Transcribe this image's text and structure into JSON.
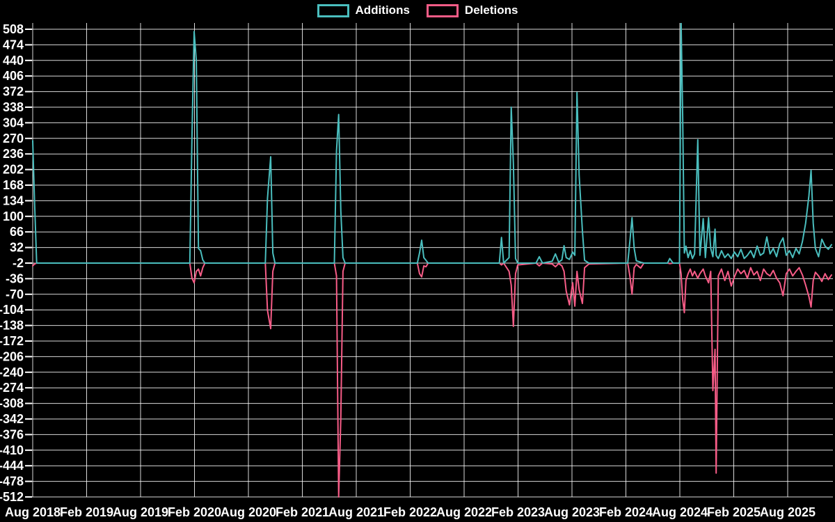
{
  "legend": {
    "items": [
      {
        "label": "Additions"
      },
      {
        "label": "Deletions"
      }
    ]
  },
  "colors": {
    "background": "#000000",
    "grid": "#FFFFFF",
    "text": "#FFFFFF",
    "additions": "#4ABEBE",
    "deletions": "#F75C87"
  },
  "chart_data": {
    "type": "line",
    "title": "",
    "legend_position": "top-center",
    "grid": true,
    "background": "#000000",
    "y_axis": {
      "range": [
        -512,
        508
      ],
      "step": 34,
      "tick_labels": [
        508,
        474,
        440,
        406,
        372,
        338,
        304,
        270,
        236,
        202,
        168,
        134,
        100,
        66,
        32,
        -2,
        -36,
        -70,
        -104,
        -138,
        -172,
        -206,
        -240,
        -274,
        -308,
        -342,
        -376,
        -410,
        -444,
        -478,
        -512
      ]
    },
    "x_axis": {
      "ticks": [
        {
          "label": "Aug 2018",
          "year": 2018.5833
        },
        {
          "label": "Feb 2019",
          "year": 2019.0833
        },
        {
          "label": "Aug 2019",
          "year": 2019.5833
        },
        {
          "label": "Feb 2020",
          "year": 2020.0833
        },
        {
          "label": "Aug 2020",
          "year": 2020.5833
        },
        {
          "label": "Feb 2021",
          "year": 2021.0833
        },
        {
          "label": "Aug 2021",
          "year": 2021.5833
        },
        {
          "label": "Feb 2022",
          "year": 2022.0833
        },
        {
          "label": "Aug 2022",
          "year": 2022.5833
        },
        {
          "label": "Feb 2023",
          "year": 2023.0833
        },
        {
          "label": "Aug 2023",
          "year": 2023.5833
        },
        {
          "label": "Feb 2024",
          "year": 2024.0833
        },
        {
          "label": "Aug 2024",
          "year": 2024.5833
        },
        {
          "label": "Feb 2025",
          "year": 2025.0833
        },
        {
          "label": "Aug 2025",
          "year": 2025.5833
        }
      ]
    },
    "x_decimal_years": [
      2018.5833,
      2018.6,
      2018.62,
      2020.04,
      2020.06,
      2020.08,
      2020.1,
      2020.12,
      2020.14,
      2020.16,
      2020.18,
      2020.74,
      2020.76,
      2020.79,
      2020.81,
      2020.83,
      2021.38,
      2021.4,
      2021.42,
      2021.44,
      2021.46,
      2021.48,
      2022.15,
      2022.17,
      2022.19,
      2022.21,
      2022.23,
      2022.25,
      2022.91,
      2022.93,
      2022.95,
      2023.0,
      2023.02,
      2023.04,
      2023.06,
      2023.08,
      2023.25,
      2023.28,
      2023.31,
      2023.4,
      2023.43,
      2023.46,
      2023.49,
      2023.51,
      2023.53,
      2023.56,
      2023.59,
      2023.61,
      2023.63,
      2023.65,
      2023.68,
      2023.7,
      2023.74,
      2024.1,
      2024.12,
      2024.14,
      2024.16,
      2024.18,
      2024.22,
      2024.25,
      2024.47,
      2024.49,
      2024.52,
      2024.58,
      2024.595,
      2024.61,
      2024.625,
      2024.64,
      2024.66,
      2024.68,
      2024.7,
      2024.72,
      2024.75,
      2024.77,
      2024.8,
      2024.82,
      2024.85,
      2024.87,
      2024.89,
      2024.91,
      2024.92,
      2024.94,
      2024.97,
      2025.0,
      2025.03,
      2025.06,
      2025.09,
      2025.12,
      2025.15,
      2025.18,
      2025.21,
      2025.24,
      2025.27,
      2025.3,
      2025.33,
      2025.36,
      2025.39,
      2025.42,
      2025.45,
      2025.48,
      2025.51,
      2025.54,
      2025.57,
      2025.6,
      2025.63,
      2025.66,
      2025.69,
      2025.72,
      2025.75,
      2025.78,
      2025.8,
      2025.82,
      2025.84,
      2025.87,
      2025.9,
      2025.93,
      2025.96,
      2025.99
    ],
    "series": [
      {
        "name": "Additions",
        "color": "#4ABEBE",
        "values": [
          265,
          134,
          -2,
          -2,
          275,
          503,
          440,
          30,
          25,
          5,
          -2,
          -2,
          139,
          230,
          20,
          -2,
          -2,
          243,
          322,
          112,
          10,
          -2,
          -2,
          20,
          48,
          10,
          4,
          -2,
          -2,
          54,
          -2,
          10,
          338,
          215,
          8,
          -2,
          -2,
          12,
          -2,
          2,
          18,
          0,
          5,
          36,
          10,
          6,
          22,
          15,
          370,
          190,
          68,
          4,
          -2,
          -2,
          45,
          97,
          30,
          3,
          0,
          -2,
          -2,
          8,
          -2,
          -2,
          525,
          317,
          20,
          35,
          10,
          25,
          8,
          18,
          267,
          15,
          95,
          10,
          97,
          30,
          12,
          72,
          15,
          8,
          25,
          10,
          18,
          8,
          22,
          12,
          28,
          8,
          15,
          25,
          10,
          35,
          15,
          20,
          55,
          18,
          30,
          12,
          40,
          53,
          15,
          25,
          10,
          30,
          18,
          45,
          85,
          145,
          200,
          85,
          30,
          12,
          50,
          35,
          28,
          38
        ]
      },
      {
        "name": "Deletions",
        "color": "#F75C87",
        "values": [
          -8,
          -4,
          -2,
          -2,
          -35,
          -45,
          -20,
          -15,
          -30,
          -12,
          -2,
          -2,
          -105,
          -145,
          -20,
          -2,
          -2,
          -30,
          -512,
          -340,
          -20,
          -2,
          -2,
          -25,
          -32,
          -8,
          -10,
          -2,
          -2,
          -6,
          -2,
          -20,
          -50,
          -140,
          -25,
          -6,
          -2,
          -8,
          -2,
          -4,
          -10,
          -3,
          -8,
          -20,
          -63,
          -93,
          -45,
          -96,
          -20,
          -60,
          -90,
          -12,
          -4,
          -2,
          -30,
          -70,
          -12,
          -5,
          -13,
          -2,
          -2,
          -3,
          -2,
          -2,
          -25,
          -82,
          -110,
          -40,
          -25,
          -15,
          -30,
          -20,
          -35,
          -25,
          -15,
          -30,
          -45,
          -20,
          -280,
          -190,
          -460,
          -30,
          -15,
          -40,
          -20,
          -52,
          -32,
          -15,
          -25,
          -18,
          -35,
          -12,
          -28,
          -20,
          -40,
          -15,
          -25,
          -30,
          -18,
          -35,
          -45,
          -73,
          -25,
          -15,
          -30,
          -20,
          -12,
          -28,
          -50,
          -75,
          -98,
          -40,
          -22,
          -30,
          -42,
          -25,
          -38,
          -28
        ]
      }
    ]
  }
}
